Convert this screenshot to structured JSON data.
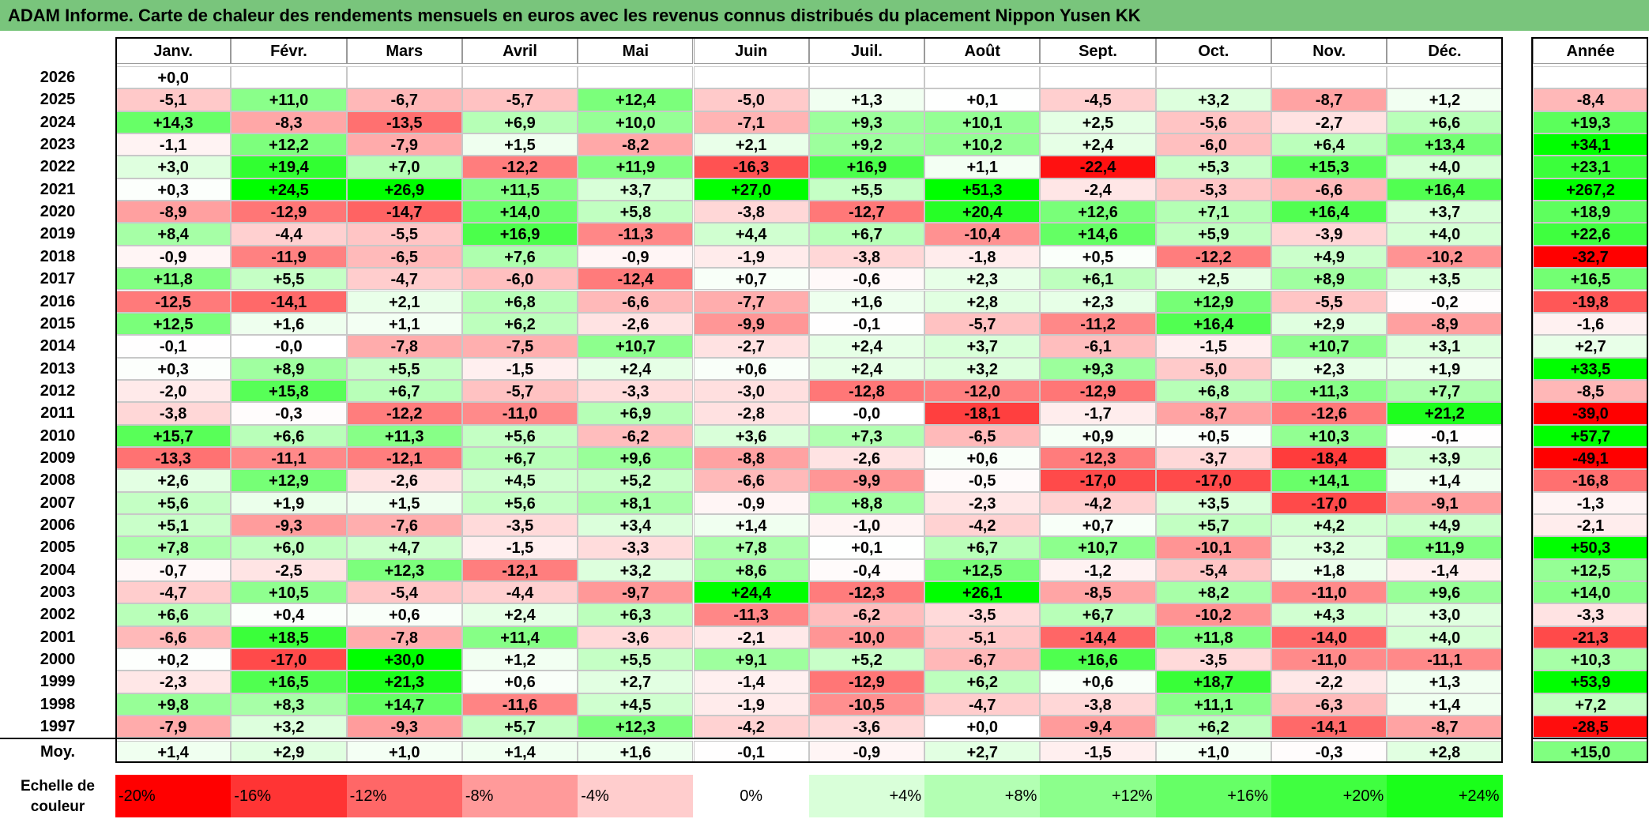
{
  "title": "ADAM Informe. Carte de chaleur des rendements mensuels en euros avec les revenus connus distribués du placement Nippon Yusen KK",
  "chart_data": {
    "type": "heatmap",
    "months": [
      "Janv.",
      "Févr.",
      "Mars",
      "Avril",
      "Mai",
      "Juin",
      "Juil.",
      "Août",
      "Sept.",
      "Oct.",
      "Nov.",
      "Déc."
    ],
    "annual_label": "Année",
    "rows": [
      {
        "year": "2026",
        "months": [
          "+0,0",
          "",
          "",
          "",
          "",
          "",
          "",
          "",
          "",
          "",
          "",
          ""
        ],
        "annual": ""
      },
      {
        "year": "2025",
        "months": [
          "-5,1",
          "+11,0",
          "-6,7",
          "-5,7",
          "+12,4",
          "-5,0",
          "+1,3",
          "+0,1",
          "-4,5",
          "+3,2",
          "-8,7",
          "+1,2"
        ],
        "annual": "-8,4"
      },
      {
        "year": "2024",
        "months": [
          "+14,3",
          "-8,3",
          "-13,5",
          "+6,9",
          "+10,0",
          "-7,1",
          "+9,3",
          "+10,1",
          "+2,5",
          "-5,6",
          "-2,7",
          "+6,6"
        ],
        "annual": "+19,3"
      },
      {
        "year": "2023",
        "months": [
          "-1,1",
          "+12,2",
          "-7,9",
          "+1,5",
          "-8,2",
          "+2,1",
          "+9,2",
          "+10,2",
          "+2,4",
          "-6,0",
          "+6,4",
          "+13,4"
        ],
        "annual": "+34,1"
      },
      {
        "year": "2022",
        "months": [
          "+3,0",
          "+19,4",
          "+7,0",
          "-12,2",
          "+11,9",
          "-16,3",
          "+16,9",
          "+1,1",
          "-22,4",
          "+5,3",
          "+15,3",
          "+4,0"
        ],
        "annual": "+23,1"
      },
      {
        "year": "2021",
        "months": [
          "+0,3",
          "+24,5",
          "+26,9",
          "+11,5",
          "+3,7",
          "+27,0",
          "+5,5",
          "+51,3",
          "-2,4",
          "-5,3",
          "-6,6",
          "+16,4"
        ],
        "annual": "+267,2"
      },
      {
        "year": "2020",
        "months": [
          "-8,9",
          "-12,9",
          "-14,7",
          "+14,0",
          "+5,8",
          "-3,8",
          "-12,7",
          "+20,4",
          "+12,6",
          "+7,1",
          "+16,4",
          "+3,7"
        ],
        "annual": "+18,9"
      },
      {
        "year": "2019",
        "months": [
          "+8,4",
          "-4,4",
          "-5,5",
          "+16,9",
          "-11,3",
          "+4,4",
          "+6,7",
          "-10,4",
          "+14,6",
          "+5,9",
          "-3,9",
          "+4,0"
        ],
        "annual": "+22,6"
      },
      {
        "year": "2018",
        "months": [
          "-0,9",
          "-11,9",
          "-6,5",
          "+7,6",
          "-0,9",
          "-1,9",
          "-3,8",
          "-1,8",
          "+0,5",
          "-12,2",
          "+4,9",
          "-10,2"
        ],
        "annual": "-32,7"
      },
      {
        "year": "2017",
        "months": [
          "+11,8",
          "+5,5",
          "-4,7",
          "-6,0",
          "-12,4",
          "+0,7",
          "-0,6",
          "+2,3",
          "+6,1",
          "+2,5",
          "+8,9",
          "+3,5"
        ],
        "annual": "+16,5"
      },
      {
        "year": "2016",
        "months": [
          "-12,5",
          "-14,1",
          "+2,1",
          "+6,8",
          "-6,6",
          "-7,7",
          "+1,6",
          "+2,8",
          "+2,3",
          "+12,9",
          "-5,5",
          "-0,2"
        ],
        "annual": "-19,8"
      },
      {
        "year": "2015",
        "months": [
          "+12,5",
          "+1,6",
          "+1,1",
          "+6,2",
          "-2,6",
          "-9,9",
          "-0,1",
          "-5,7",
          "-11,2",
          "+16,4",
          "+2,9",
          "-8,9"
        ],
        "annual": "-1,6"
      },
      {
        "year": "2014",
        "months": [
          "-0,1",
          "-0,0",
          "-7,8",
          "-7,5",
          "+10,7",
          "-2,7",
          "+2,4",
          "+3,7",
          "-6,1",
          "-1,5",
          "+10,7",
          "+3,1"
        ],
        "annual": "+2,7"
      },
      {
        "year": "2013",
        "months": [
          "+0,3",
          "+8,9",
          "+5,5",
          "-1,5",
          "+2,4",
          "+0,6",
          "+2,4",
          "+3,2",
          "+9,3",
          "-5,0",
          "+2,3",
          "+1,9"
        ],
        "annual": "+33,5"
      },
      {
        "year": "2012",
        "months": [
          "-2,0",
          "+15,8",
          "+6,7",
          "-5,7",
          "-3,3",
          "-3,0",
          "-12,8",
          "-12,0",
          "-12,9",
          "+6,8",
          "+11,3",
          "+7,7"
        ],
        "annual": "-8,5"
      },
      {
        "year": "2011",
        "months": [
          "-3,8",
          "-0,3",
          "-12,2",
          "-11,0",
          "+6,9",
          "-2,8",
          "-0,0",
          "-18,1",
          "-1,7",
          "-8,7",
          "-12,6",
          "+21,2"
        ],
        "annual": "-39,0"
      },
      {
        "year": "2010",
        "months": [
          "+15,7",
          "+6,6",
          "+11,3",
          "+5,6",
          "-6,2",
          "+3,6",
          "+7,3",
          "-6,5",
          "+0,9",
          "+0,5",
          "+10,3",
          "-0,1"
        ],
        "annual": "+57,7"
      },
      {
        "year": "2009",
        "months": [
          "-13,3",
          "-11,1",
          "-12,1",
          "+6,7",
          "+9,6",
          "-8,8",
          "-2,6",
          "+0,6",
          "-12,3",
          "-3,7",
          "-18,4",
          "+3,9"
        ],
        "annual": "-49,1"
      },
      {
        "year": "2008",
        "months": [
          "+2,6",
          "+12,9",
          "-2,6",
          "+4,5",
          "+5,2",
          "-6,6",
          "-9,9",
          "-0,5",
          "-17,0",
          "-17,0",
          "+14,1",
          "+1,4"
        ],
        "annual": "-16,8"
      },
      {
        "year": "2007",
        "months": [
          "+5,6",
          "+1,9",
          "+1,5",
          "+5,6",
          "+8,1",
          "-0,9",
          "+8,8",
          "-2,3",
          "-4,2",
          "+3,5",
          "-17,0",
          "-9,1"
        ],
        "annual": "-1,3"
      },
      {
        "year": "2006",
        "months": [
          "+5,1",
          "-9,3",
          "-7,6",
          "-3,5",
          "+3,4",
          "+1,4",
          "-1,0",
          "-4,2",
          "+0,7",
          "+5,7",
          "+4,2",
          "+4,9"
        ],
        "annual": "-2,1"
      },
      {
        "year": "2005",
        "months": [
          "+7,8",
          "+6,0",
          "+4,7",
          "-1,5",
          "-3,3",
          "+7,8",
          "+0,1",
          "+6,7",
          "+10,7",
          "-10,1",
          "+3,2",
          "+11,9"
        ],
        "annual": "+50,3"
      },
      {
        "year": "2004",
        "months": [
          "-0,7",
          "-2,5",
          "+12,3",
          "-12,1",
          "+3,2",
          "+8,6",
          "-0,4",
          "+12,5",
          "-1,2",
          "-5,4",
          "+1,8",
          "-1,4"
        ],
        "annual": "+12,5"
      },
      {
        "year": "2003",
        "months": [
          "-4,7",
          "+10,5",
          "-5,4",
          "-4,4",
          "-9,7",
          "+24,4",
          "-12,3",
          "+26,1",
          "-8,5",
          "+8,2",
          "-11,0",
          "+9,6"
        ],
        "annual": "+14,0"
      },
      {
        "year": "2002",
        "months": [
          "+6,6",
          "+0,4",
          "+0,6",
          "+2,4",
          "+6,3",
          "-11,3",
          "-6,2",
          "-3,5",
          "+6,7",
          "-10,2",
          "+4,3",
          "+3,0"
        ],
        "annual": "-3,3"
      },
      {
        "year": "2001",
        "months": [
          "-6,6",
          "+18,5",
          "-7,8",
          "+11,4",
          "-3,6",
          "-2,1",
          "-10,0",
          "-5,1",
          "-14,4",
          "+11,8",
          "-14,0",
          "+4,0"
        ],
        "annual": "-21,3"
      },
      {
        "year": "2000",
        "months": [
          "+0,2",
          "-17,0",
          "+30,0",
          "+1,2",
          "+5,5",
          "+9,1",
          "+5,2",
          "-6,7",
          "+16,6",
          "-3,5",
          "-11,0",
          "-11,1"
        ],
        "annual": "+10,3"
      },
      {
        "year": "1999",
        "months": [
          "-2,3",
          "+16,5",
          "+21,3",
          "+0,6",
          "+2,7",
          "-1,4",
          "-12,9",
          "+6,2",
          "+0,6",
          "+18,7",
          "-2,2",
          "+1,3"
        ],
        "annual": "+53,9"
      },
      {
        "year": "1998",
        "months": [
          "+9,8",
          "+8,3",
          "+14,7",
          "-11,6",
          "+4,5",
          "-1,9",
          "-10,5",
          "-4,7",
          "-3,8",
          "+11,1",
          "-6,3",
          "+1,4"
        ],
        "annual": "+7,2"
      },
      {
        "year": "1997",
        "months": [
          "-7,9",
          "+3,2",
          "-9,3",
          "+5,7",
          "+12,3",
          "-4,2",
          "-3,6",
          "+0,0",
          "-9,4",
          "+6,2",
          "-14,1",
          "-8,7"
        ],
        "annual": "-28,5"
      }
    ],
    "average": {
      "label": "Moy.",
      "months": [
        "+1,4",
        "+2,9",
        "+1,0",
        "+1,4",
        "+1,6",
        "-0,1",
        "-0,9",
        "+2,7",
        "-1,5",
        "+1,0",
        "-0,3",
        "+2,8"
      ],
      "annual": "+15,0"
    },
    "scale": {
      "label": "Echelle de couleur",
      "steps": [
        "-20%",
        "-16%",
        "-12%",
        "-8%",
        "-4%",
        "0%",
        "+4%",
        "+8%",
        "+12%",
        "+16%",
        "+20%",
        "+24%"
      ],
      "colors": [
        "#ff0000",
        "#ff3434",
        "#ff6767",
        "#ff9a9a",
        "#ffcdcd",
        "#ffffff",
        "#d9ffd9",
        "#b3ffb3",
        "#8cff8c",
        "#66ff66",
        "#40ff40",
        "#1aff1a"
      ]
    }
  }
}
